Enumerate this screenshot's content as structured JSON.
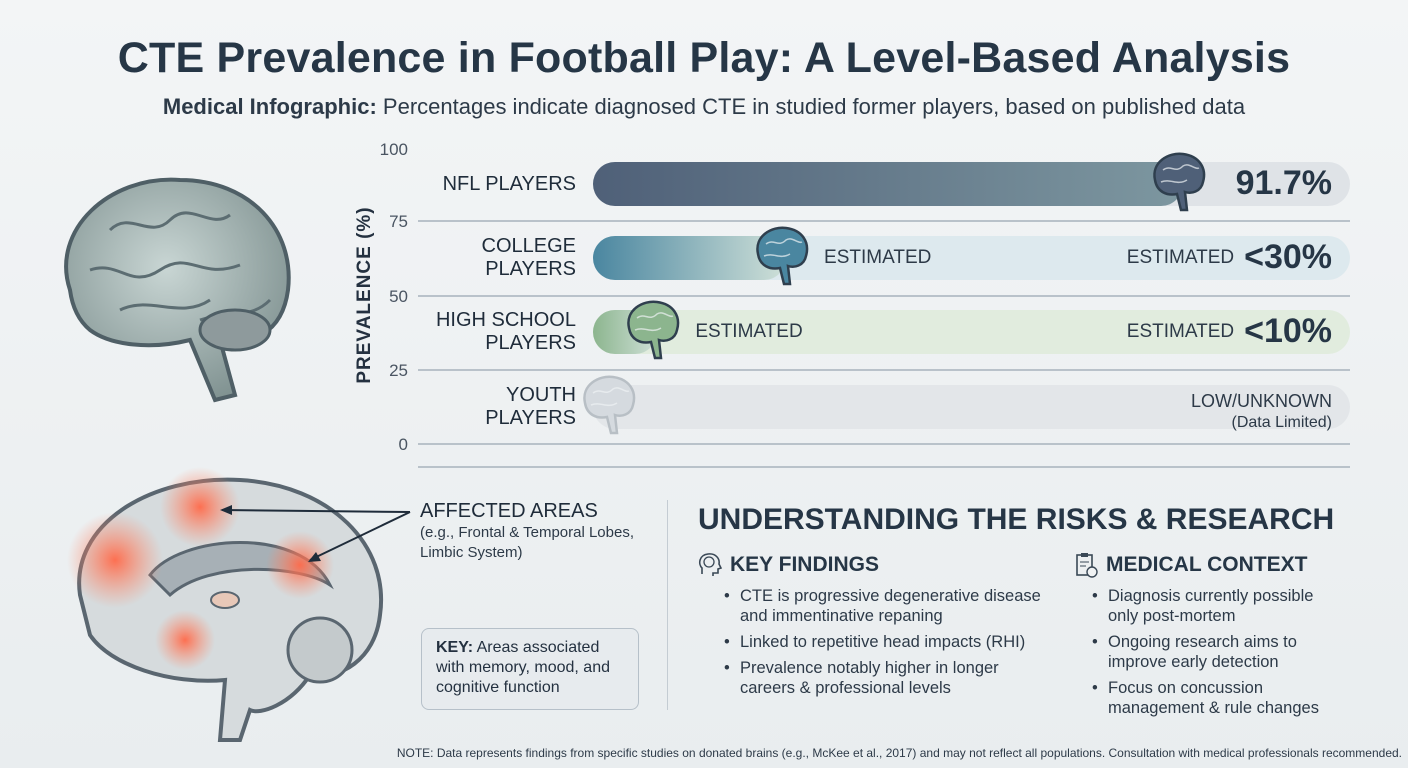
{
  "header": {
    "title": "CTE Prevalence in Football Play: A Level-Based Analysis",
    "subtitle_bold": "Medical Infographic:",
    "subtitle_rest": "Percentages indicate diagnosed CTE in studied former players, based on published data"
  },
  "chart_data": {
    "type": "bar",
    "orientation": "horizontal",
    "ylabel": "PREVALENCE (%)",
    "ticks": [
      "100",
      "75",
      "50",
      "25",
      "0"
    ],
    "ylim": [
      0,
      100
    ],
    "categories": [
      "NFL PLAYERS",
      "COLLEGE PLAYERS",
      "HIGH SCHOOL PLAYERS",
      "YOUTH PLAYERS"
    ],
    "category_lines": [
      [
        "NFL PLAYERS"
      ],
      [
        "COLLEGE",
        "PLAYERS"
      ],
      [
        "HIGH SCHOOL",
        "PLAYERS"
      ],
      [
        "YOUTH",
        "PLAYERS"
      ]
    ],
    "values": [
      91.7,
      30,
      10,
      null
    ],
    "value_labels": [
      "91.7%",
      "<30%",
      "<10%",
      "LOW/UNKNOWN"
    ],
    "inner_labels": [
      "",
      "ESTIMATED",
      "ESTIMATED",
      ""
    ],
    "prefix_labels": [
      "",
      "ESTIMATED",
      "ESTIMATED",
      ""
    ],
    "sub_labels": [
      "",
      "",
      "",
      "(Data Limited)"
    ],
    "colors": [
      "#4f6078",
      "#4a86a0",
      "#8cb58e",
      "#d5dadf"
    ]
  },
  "brain_diagram": {
    "affected_title": "AFFECTED AREAS",
    "affected_sub": "(e.g., Frontal & Temporal Lobes, Limbic System)",
    "key_bold": "KEY:",
    "key_text": "Areas associated with memory, mood, and cognitive function"
  },
  "risks": {
    "title": "UNDERSTANDING THE RISKS & RESEARCH",
    "key_findings": {
      "title": "KEY FINDINGS",
      "items": [
        "CTE is progressive degenerative disease and immentinative repaning",
        "Linked to repetitive head impacts (RHI)",
        "Prevalence notably higher in longer careers & professional levels"
      ]
    },
    "medical_context": {
      "title": "MEDICAL CONTEXT",
      "items": [
        "Diagnosis currently possible only post-mortem",
        "Ongoing research aims to improve early detection",
        "Focus on concussion management & rule changes"
      ]
    }
  },
  "note": "NOTE: Data represents findings from specific studies on donated brains (e.g., McKee et al., 2017) and may not reflect all populations. Consultation with medical professionals recommended."
}
